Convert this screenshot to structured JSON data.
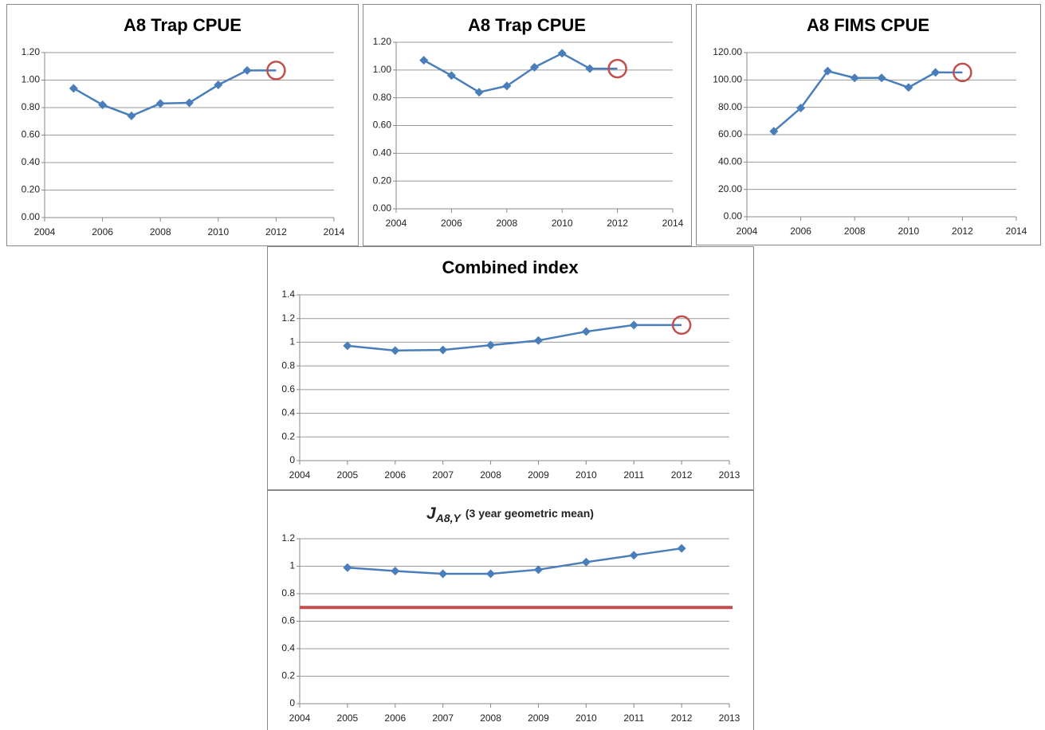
{
  "chart_data": [
    {
      "type": "line",
      "title": "A8 Trap CPUE",
      "x": [
        2005,
        2006,
        2007,
        2008,
        2009,
        2010,
        2011,
        2012
      ],
      "values": [
        0.94,
        0.82,
        0.74,
        0.83,
        0.835,
        0.965,
        1.07,
        1.07
      ],
      "color": "#4a7ebb",
      "highlight_last": true,
      "highlight_color": "#c0504d",
      "xlim": [
        2004,
        2014
      ],
      "xticks": [
        2004,
        2006,
        2008,
        2010,
        2012,
        2014
      ],
      "ylim": [
        0,
        1.2
      ],
      "yticks": [
        {
          "value": 0,
          "label": "0.00"
        },
        {
          "value": 0.2,
          "label": "0.20"
        },
        {
          "value": 0.4,
          "label": "0.40"
        },
        {
          "value": 0.6,
          "label": "0.60"
        },
        {
          "value": 0.8,
          "label": "0.80"
        },
        {
          "value": 1,
          "label": "1.00"
        },
        {
          "value": 1.2,
          "label": "1.20"
        }
      ],
      "grid": true
    },
    {
      "type": "line",
      "title": "A8 Trap CPUE",
      "x": [
        2005,
        2006,
        2007,
        2008,
        2009,
        2010,
        2011,
        2012
      ],
      "values": [
        1.07,
        0.96,
        0.84,
        0.885,
        1.02,
        1.12,
        1.01,
        1.01
      ],
      "color": "#4a7ebb",
      "highlight_last": true,
      "highlight_color": "#c0504d",
      "xlim": [
        2004,
        2014
      ],
      "xticks": [
        2004,
        2006,
        2008,
        2010,
        2012,
        2014
      ],
      "ylim": [
        0,
        1.2
      ],
      "yticks": [
        {
          "value": 0,
          "label": "0.00"
        },
        {
          "value": 0.2,
          "label": "0.20"
        },
        {
          "value": 0.4,
          "label": "0.40"
        },
        {
          "value": 0.6,
          "label": "0.60"
        },
        {
          "value": 0.8,
          "label": "0.80"
        },
        {
          "value": 1,
          "label": "1.00"
        },
        {
          "value": 1.2,
          "label": "1.20"
        }
      ],
      "grid": true
    },
    {
      "type": "line",
      "title": "A8 FIMS CPUE",
      "x": [
        2005,
        2006,
        2007,
        2008,
        2009,
        2010,
        2011,
        2012
      ],
      "values": [
        62.5,
        79.5,
        106.5,
        101.5,
        101.5,
        94.5,
        105.5,
        105.5
      ],
      "color": "#4a7ebb",
      "highlight_last": true,
      "highlight_color": "#c0504d",
      "xlim": [
        2004,
        2014
      ],
      "xticks": [
        2004,
        2006,
        2008,
        2010,
        2012,
        2014
      ],
      "ylim": [
        0,
        120
      ],
      "yticks": [
        {
          "value": 0,
          "label": "0.00"
        },
        {
          "value": 20,
          "label": "20.00"
        },
        {
          "value": 40,
          "label": "40.00"
        },
        {
          "value": 60,
          "label": "60.00"
        },
        {
          "value": 80,
          "label": "80.00"
        },
        {
          "value": 100,
          "label": "100.00"
        },
        {
          "value": 120,
          "label": "120.00"
        }
      ],
      "grid": true
    },
    {
      "type": "line",
      "title": "Combined index",
      "x": [
        2005,
        2006,
        2007,
        2008,
        2009,
        2010,
        2011,
        2012
      ],
      "values": [
        0.97,
        0.93,
        0.935,
        0.975,
        1.015,
        1.09,
        1.145,
        1.145
      ],
      "color": "#4a7ebb",
      "highlight_last": true,
      "highlight_color": "#c0504d",
      "xlim": [
        2004,
        2013
      ],
      "xticks": [
        2004,
        2005,
        2006,
        2007,
        2008,
        2009,
        2010,
        2011,
        2012,
        2013
      ],
      "ylim": [
        0,
        1.4
      ],
      "yticks": [
        0,
        0.2,
        0.4,
        0.6,
        0.8,
        1,
        1.2,
        1.4
      ],
      "grid": true
    },
    {
      "type": "line",
      "title": "J",
      "title_subscript": "A8,Y",
      "subtitle": "(3 year geometric mean)",
      "x": [
        2005,
        2006,
        2007,
        2008,
        2009,
        2010,
        2011,
        2012
      ],
      "values": [
        0.99,
        0.965,
        0.945,
        0.945,
        0.975,
        1.03,
        1.08,
        1.13
      ],
      "color": "#4a7ebb",
      "highlight_last": false,
      "reference_line": 0.7,
      "reference_color": "#c0504d",
      "xlim": [
        2004,
        2013
      ],
      "xticks": [
        2004,
        2005,
        2006,
        2007,
        2008,
        2009,
        2010,
        2011,
        2012,
        2013
      ],
      "ylim": [
        0,
        1.2
      ],
      "yticks": [
        0,
        0.2,
        0.4,
        0.6,
        0.8,
        1,
        1.2
      ],
      "grid": true
    }
  ]
}
